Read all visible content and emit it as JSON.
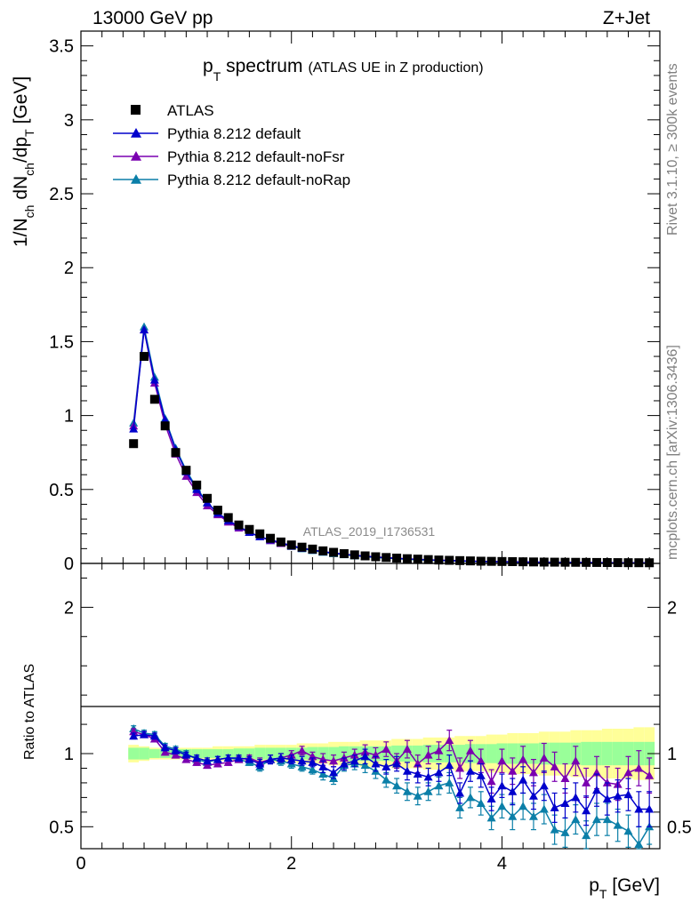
{
  "header": {
    "left": "13000 GeV pp",
    "right": "Z+Jet"
  },
  "side_text": {
    "top": "Rivet 3.1.10, ≥ 300k events",
    "bottom": "mcplots.cern.ch [arXiv:1306.3436]"
  },
  "chart_data": [
    {
      "type": "scatter",
      "title_main": "p",
      "title_sub": "T",
      "title_rest": " spectrum",
      "title_note": "(ATLAS UE in Z production)",
      "watermark": "ATLAS_2019_I1736531",
      "ylabel": "1/N_ch dN_ch/dp_T [GeV]",
      "ylabel_parts": {
        "a": "1/N",
        "a_sub": "ch",
        "b": " dN",
        "b_sub": "ch",
        "c": "/dp",
        "c_sub": "T",
        "d": " [GeV]"
      },
      "xlim": [
        0,
        5.5
      ],
      "ylim": [
        0,
        3.6
      ],
      "yticks": [
        "0",
        "0.5",
        "1",
        "1.5",
        "2",
        "2.5",
        "3",
        "3.5"
      ],
      "x": [
        0.5,
        0.6,
        0.7,
        0.8,
        0.9,
        1.0,
        1.1,
        1.2,
        1.3,
        1.4,
        1.5,
        1.6,
        1.7,
        1.8,
        1.9,
        2.0,
        2.1,
        2.2,
        2.3,
        2.4,
        2.5,
        2.6,
        2.7,
        2.8,
        2.9,
        3.0,
        3.1,
        3.2,
        3.3,
        3.4,
        3.5,
        3.6,
        3.7,
        3.8,
        3.9,
        4.0,
        4.1,
        4.2,
        4.3,
        4.4,
        4.5,
        4.6,
        4.7,
        4.8,
        4.9,
        5.0,
        5.1,
        5.2,
        5.3,
        5.4
      ],
      "legend": [
        {
          "name": "ATLAS",
          "color": "#000000",
          "marker": "square"
        },
        {
          "name": "Pythia 8.212 default",
          "color": "#0000cc",
          "marker": "triangle"
        },
        {
          "name": "Pythia 8.212 default-noFsr",
          "color": "#7a00b0",
          "marker": "triangle"
        },
        {
          "name": "Pythia 8.212 default-noRap",
          "color": "#0b7fa8",
          "marker": "triangle"
        }
      ],
      "series": [
        {
          "name": "ATLAS",
          "values": [
            0.81,
            1.4,
            1.11,
            0.93,
            0.75,
            0.63,
            0.53,
            0.44,
            0.36,
            0.31,
            0.26,
            0.23,
            0.2,
            0.17,
            0.145,
            0.125,
            0.11,
            0.097,
            0.085,
            0.075,
            0.066,
            0.058,
            0.051,
            0.045,
            0.04,
            0.036,
            0.032,
            0.029,
            0.026,
            0.023,
            0.021,
            0.019,
            0.017,
            0.015,
            0.014,
            0.013,
            0.012,
            0.011,
            0.01,
            0.009,
            0.0085,
            0.008,
            0.0075,
            0.007,
            0.0065,
            0.006,
            0.0055,
            0.005,
            0.0048,
            0.0045
          ]
        },
        {
          "name": "Pythia 8.212 default",
          "values": [
            0.91,
            1.58,
            1.24,
            0.97,
            0.77,
            0.62,
            0.5,
            0.41,
            0.34,
            0.29,
            0.25,
            0.21,
            0.18,
            0.16,
            0.14,
            0.12,
            0.103,
            0.091,
            0.079,
            0.07,
            0.062,
            0.055,
            0.048,
            0.043,
            0.038,
            0.034,
            0.03,
            0.027,
            0.024,
            0.021,
            0.019,
            0.017,
            0.015,
            0.013,
            0.012,
            0.011,
            0.01,
            0.009,
            0.008,
            0.0075,
            0.007,
            0.0065,
            0.006,
            0.0055,
            0.005,
            0.0045,
            0.004,
            0.0038,
            0.0035,
            0.0032
          ]
        },
        {
          "name": "Pythia 8.212 default-noFsr",
          "values": [
            0.93,
            1.58,
            1.22,
            0.94,
            0.74,
            0.59,
            0.48,
            0.39,
            0.33,
            0.28,
            0.24,
            0.21,
            0.18,
            0.155,
            0.135,
            0.117,
            0.104,
            0.091,
            0.08,
            0.07,
            0.062,
            0.055,
            0.049,
            0.044,
            0.039,
            0.035,
            0.031,
            0.028,
            0.025,
            0.022,
            0.02,
            0.018,
            0.016,
            0.014,
            0.013,
            0.012,
            0.011,
            0.01,
            0.009,
            0.008,
            0.0075,
            0.007,
            0.0065,
            0.006,
            0.0055,
            0.005,
            0.0045,
            0.0042,
            0.004,
            0.0037
          ]
        },
        {
          "name": "Pythia 8.212 default-noRap",
          "values": [
            0.95,
            1.6,
            1.26,
            0.98,
            0.78,
            0.63,
            0.51,
            0.41,
            0.34,
            0.29,
            0.25,
            0.21,
            0.18,
            0.155,
            0.135,
            0.115,
            0.1,
            0.088,
            0.076,
            0.067,
            0.059,
            0.052,
            0.046,
            0.04,
            0.036,
            0.032,
            0.028,
            0.025,
            0.022,
            0.02,
            0.018,
            0.016,
            0.014,
            0.012,
            0.011,
            0.01,
            0.009,
            0.008,
            0.0072,
            0.0066,
            0.006,
            0.0055,
            0.005,
            0.0045,
            0.0042,
            0.004,
            0.0036,
            0.0034,
            0.0031,
            0.0028
          ]
        }
      ]
    },
    {
      "type": "scatter",
      "ylabel": "Ratio to ATLAS",
      "xlabel": "p_T [GeV]",
      "xlabel_parts": {
        "a": "p",
        "a_sub": "T",
        "b": " [GeV]"
      },
      "xlim": [
        0,
        5.5
      ],
      "ylim": [
        0.35,
        2.3
      ],
      "xticks": [
        "0",
        "2",
        "4"
      ],
      "xtick_values": [
        0,
        2,
        4
      ],
      "yticks": [
        "0.5",
        "1",
        "2"
      ],
      "ytick_values": [
        0.5,
        1,
        2
      ],
      "band_inner_halfwidth": [
        0.04,
        0.04,
        0.03,
        0.03,
        0.03,
        0.03,
        0.03,
        0.03,
        0.03,
        0.03,
        0.035,
        0.035,
        0.04,
        0.04,
        0.04,
        0.04,
        0.04,
        0.045,
        0.045,
        0.045,
        0.05,
        0.05,
        0.05,
        0.05,
        0.05,
        0.055,
        0.055,
        0.055,
        0.06,
        0.06,
        0.06,
        0.06,
        0.065,
        0.065,
        0.065,
        0.07,
        0.07,
        0.07,
        0.07,
        0.075,
        0.075,
        0.075,
        0.075,
        0.08,
        0.08,
        0.08,
        0.08,
        0.08,
        0.08,
        0.08
      ],
      "band_outer_halfwidth": [
        0.06,
        0.05,
        0.04,
        0.04,
        0.04,
        0.04,
        0.04,
        0.04,
        0.05,
        0.05,
        0.05,
        0.05,
        0.06,
        0.06,
        0.06,
        0.06,
        0.07,
        0.07,
        0.07,
        0.08,
        0.08,
        0.08,
        0.09,
        0.09,
        0.09,
        0.1,
        0.1,
        0.1,
        0.11,
        0.11,
        0.11,
        0.12,
        0.12,
        0.12,
        0.13,
        0.13,
        0.14,
        0.14,
        0.14,
        0.15,
        0.15,
        0.15,
        0.16,
        0.16,
        0.16,
        0.17,
        0.17,
        0.17,
        0.18,
        0.18
      ],
      "series": [
        {
          "name": "Pythia 8.212 default",
          "values": [
            1.12,
            1.13,
            1.12,
            1.04,
            1.02,
            0.99,
            0.97,
            0.95,
            0.96,
            0.97,
            0.97,
            0.96,
            0.93,
            0.96,
            0.97,
            0.96,
            0.95,
            0.94,
            0.91,
            0.87,
            0.93,
            0.95,
            0.98,
            0.93,
            0.91,
            0.93,
            0.88,
            0.86,
            0.84,
            0.87,
            0.92,
            0.73,
            0.88,
            0.85,
            0.69,
            0.78,
            0.74,
            0.82,
            0.71,
            0.78,
            0.63,
            0.66,
            0.7,
            0.61,
            0.75,
            0.69,
            0.71,
            0.72,
            0.62,
            0.62
          ],
          "errors": [
            0.02,
            0.02,
            0.02,
            0.02,
            0.02,
            0.02,
            0.02,
            0.02,
            0.02,
            0.02,
            0.02,
            0.02,
            0.03,
            0.03,
            0.03,
            0.03,
            0.03,
            0.03,
            0.04,
            0.04,
            0.04,
            0.04,
            0.05,
            0.05,
            0.05,
            0.05,
            0.06,
            0.06,
            0.06,
            0.06,
            0.07,
            0.07,
            0.07,
            0.08,
            0.08,
            0.08,
            0.09,
            0.09,
            0.09,
            0.1,
            0.1,
            0.1,
            0.1,
            0.1,
            0.11,
            0.11,
            0.11,
            0.11,
            0.12,
            0.12
          ]
        },
        {
          "name": "Pythia 8.212 default-noFsr",
          "values": [
            1.15,
            1.13,
            1.1,
            1.01,
            0.99,
            0.96,
            0.94,
            0.92,
            0.93,
            0.94,
            0.96,
            0.97,
            0.94,
            0.96,
            0.97,
            0.99,
            1.02,
            0.98,
            0.96,
            0.95,
            0.97,
            0.99,
            1.01,
            0.99,
            1.03,
            0.95,
            1.03,
            0.93,
            0.99,
            1.02,
            1.09,
            0.9,
            1.02,
            0.95,
            0.81,
            0.95,
            0.88,
            0.96,
            0.87,
            0.97,
            0.91,
            0.83,
            0.95,
            0.8,
            0.87,
            0.8,
            0.79,
            0.87,
            0.9,
            0.85
          ],
          "errors": [
            0.02,
            0.02,
            0.02,
            0.02,
            0.02,
            0.02,
            0.02,
            0.02,
            0.02,
            0.02,
            0.02,
            0.02,
            0.03,
            0.03,
            0.03,
            0.03,
            0.03,
            0.03,
            0.04,
            0.04,
            0.04,
            0.04,
            0.05,
            0.05,
            0.05,
            0.05,
            0.06,
            0.06,
            0.06,
            0.06,
            0.07,
            0.07,
            0.07,
            0.08,
            0.08,
            0.08,
            0.09,
            0.09,
            0.09,
            0.1,
            0.1,
            0.1,
            0.1,
            0.1,
            0.11,
            0.11,
            0.11,
            0.11,
            0.12,
            0.12
          ]
        },
        {
          "name": "Pythia 8.212 default-noRap",
          "values": [
            1.17,
            1.14,
            1.13,
            1.05,
            1.03,
            1.0,
            0.96,
            0.94,
            0.96,
            0.97,
            0.96,
            0.94,
            0.91,
            0.96,
            0.95,
            0.93,
            0.91,
            0.89,
            0.86,
            0.83,
            0.92,
            0.93,
            0.92,
            0.88,
            0.82,
            0.78,
            0.74,
            0.71,
            0.74,
            0.78,
            0.8,
            0.63,
            0.7,
            0.66,
            0.56,
            0.64,
            0.57,
            0.64,
            0.57,
            0.62,
            0.48,
            0.46,
            0.55,
            0.44,
            0.55,
            0.55,
            0.51,
            0.47,
            0.38,
            0.5
          ],
          "errors": [
            0.02,
            0.02,
            0.02,
            0.02,
            0.02,
            0.02,
            0.02,
            0.02,
            0.02,
            0.02,
            0.02,
            0.02,
            0.03,
            0.03,
            0.03,
            0.03,
            0.03,
            0.03,
            0.04,
            0.04,
            0.04,
            0.04,
            0.05,
            0.05,
            0.05,
            0.05,
            0.06,
            0.06,
            0.06,
            0.06,
            0.07,
            0.07,
            0.07,
            0.08,
            0.08,
            0.08,
            0.09,
            0.09,
            0.09,
            0.1,
            0.1,
            0.1,
            0.1,
            0.1,
            0.11,
            0.11,
            0.11,
            0.11,
            0.12,
            0.12
          ]
        }
      ]
    }
  ]
}
